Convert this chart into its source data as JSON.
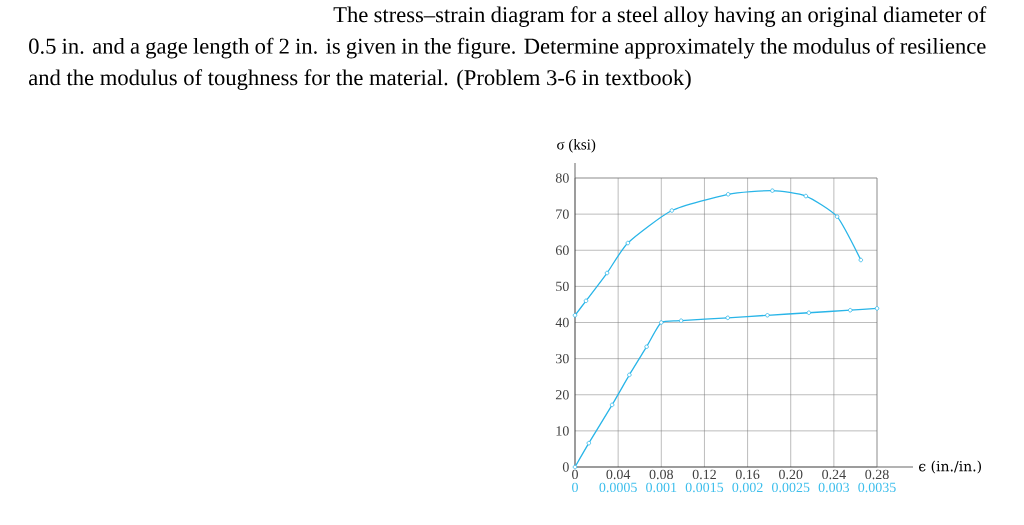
{
  "chart_data": {
    "type": "line",
    "title": "The stress–strain diagram for a steel alloy having an original diameter of 0.5 in. and a gage length of 2 in. is given in the figure. Determine approximately the modulus of resilience and the modulus of toughness for the material. (Problem 3-6 in textbook)",
    "xlabel": "ϵ (in./in.)",
    "ylabel": "σ (ksi)",
    "xlim": [
      0,
      0.28
    ],
    "xticks": [
      0,
      0.04,
      0.08,
      0.12,
      0.16,
      {
        "value": 0.2,
        "label": "0.20"
      },
      0.24,
      0.28
    ],
    "x2lim": [
      0,
      0.0035
    ],
    "x2ticks": [
      0,
      0.0005,
      0.001,
      0.0015,
      0.002,
      0.0025,
      0.003,
      0.0035
    ],
    "ylim": [
      0,
      80
    ],
    "yticks": [
      0,
      10,
      20,
      30,
      40,
      50,
      60,
      70,
      80
    ],
    "grid": true,
    "marker": "circle",
    "line_style": "solid",
    "series": [
      {
        "color": "#29b5e8",
        "x": [
          0,
          0.0102,
          0.0297,
          0.049,
          0.0898,
          0.142,
          0.183,
          0.214,
          0.243,
          0.265
        ],
        "values": [
          42,
          46,
          53.7,
          62,
          71,
          75.5,
          76.5,
          75,
          69.3,
          57.3
        ]
      },
      {
        "color": "#29b5e8",
        "axis": "x2",
        "x": [
          0,
          0.00016,
          0.00043,
          0.00063,
          0.00083,
          0.001,
          0.00123,
          0.00177,
          0.00223,
          0.00271,
          0.00319,
          0.0035
        ],
        "values": [
          0,
          6.6,
          17.2,
          25.5,
          33.3,
          40,
          40.5,
          41.3,
          42,
          42.7,
          43.4,
          43.9
        ]
      }
    ]
  }
}
